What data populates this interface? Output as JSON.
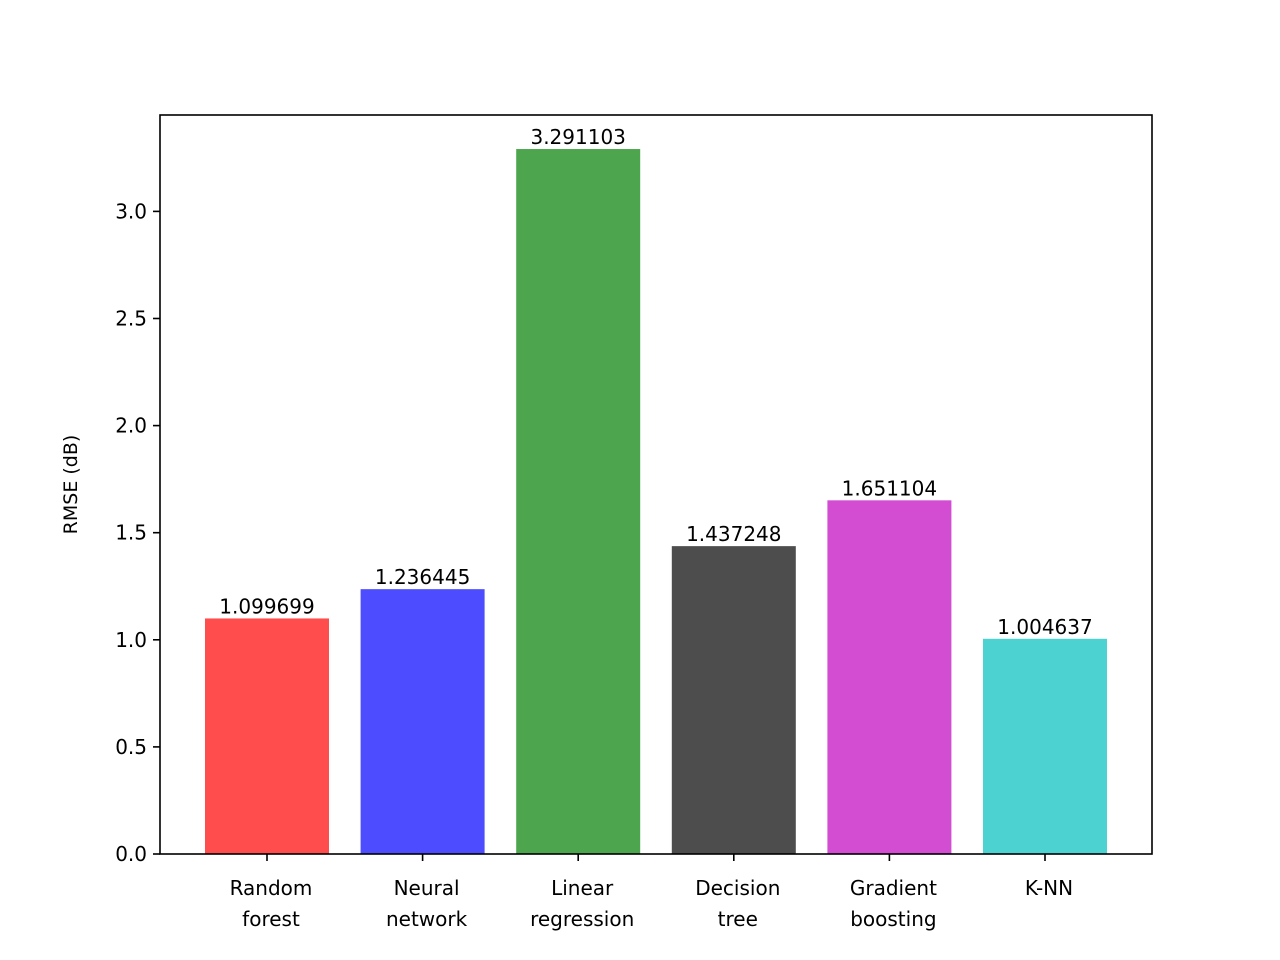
{
  "chart_data": {
    "type": "bar",
    "title": "",
    "xlabel": "",
    "ylabel": "RMSE (dB)",
    "ylim": [
      0,
      3.45
    ],
    "yticks": [
      {
        "value": 0.0,
        "label": "0.0"
      },
      {
        "value": 0.5,
        "label": "0.5"
      },
      {
        "value": 1.0,
        "label": "1.0"
      },
      {
        "value": 1.5,
        "label": "1.5"
      },
      {
        "value": 2.0,
        "label": "2.0"
      },
      {
        "value": 2.5,
        "label": "2.5"
      },
      {
        "value": 3.0,
        "label": "3.0"
      }
    ],
    "grid": false,
    "categories": [
      [
        "Random",
        "forest"
      ],
      [
        "Neural",
        "network"
      ],
      [
        "Linear",
        "regression"
      ],
      [
        "Decision",
        "tree"
      ],
      [
        "Gradient",
        "boosting"
      ],
      [
        "K-NN"
      ]
    ],
    "values": [
      1.099699,
      1.236445,
      3.291103,
      1.437248,
      1.651104,
      1.004637
    ],
    "value_labels": [
      "1.099699",
      "1.236445",
      "3.291103",
      "1.437248",
      "1.651104",
      "1.004637"
    ],
    "colors": [
      "#ff4d4d",
      "#4d4dff",
      "#4da64d",
      "#4d4d4d",
      "#d24dd2",
      "#4dd2d2"
    ]
  }
}
